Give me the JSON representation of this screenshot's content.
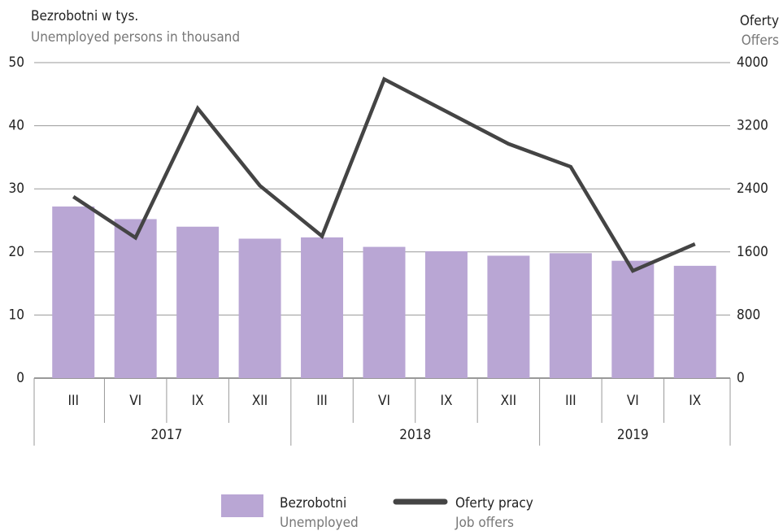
{
  "chart_data": {
    "type": "bar",
    "y_title": "Bezrobotni w tys.",
    "y_subtitle": "Unemployed persons in thousand",
    "y2_title": "Oferty",
    "y2_subtitle": "Offers",
    "categories": [
      "III",
      "VI",
      "IX",
      "XII",
      "III",
      "VI",
      "IX",
      "XII",
      "III",
      "VI",
      "IX"
    ],
    "x_groups": [
      {
        "label": "2017",
        "count": 4
      },
      {
        "label": "2018",
        "count": 4
      },
      {
        "label": "2019",
        "count": 3
      }
    ],
    "series": [
      {
        "name": "Bezrobotni",
        "subname": "Unemployed",
        "type": "bar",
        "color": "#b9a6d4",
        "values": [
          27.2,
          25.2,
          24,
          22.1,
          22.3,
          20.8,
          20.1,
          19.4,
          19.8,
          18.6,
          17.8
        ]
      },
      {
        "name": "Oferty pracy",
        "subname": "Job offers",
        "type": "line",
        "axis": "y2",
        "color": "#444444",
        "values": [
          2300,
          1780,
          3420,
          2440,
          1800,
          3790,
          3380,
          2970,
          2680,
          1360,
          1700
        ]
      }
    ],
    "ylim": [
      0,
      50
    ],
    "yticks": [
      0,
      10,
      20,
      30,
      40,
      50
    ],
    "y2lim": [
      0,
      4000
    ],
    "y2ticks": [
      0,
      800,
      1600,
      2400,
      3200,
      4000
    ],
    "grid": true
  }
}
